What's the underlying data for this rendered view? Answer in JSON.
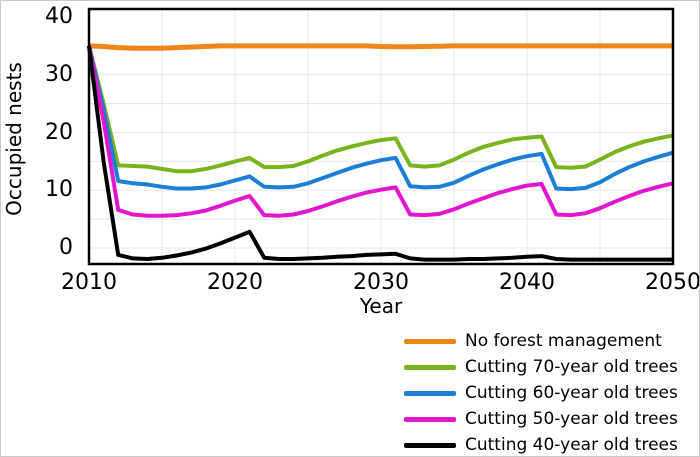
{
  "figure_title": "",
  "axes": {
    "y_title": "Occupied nests",
    "x_title": "Year"
  },
  "chart_data": {
    "type": "line",
    "title": "",
    "xlabel": "Year",
    "ylabel": "Occupied nests",
    "xlim": [
      2010,
      2050
    ],
    "ylim": [
      -2.8,
      41.4
    ],
    "x_ticks": [
      2010,
      2020,
      2030,
      2040,
      2050
    ],
    "y_ticks": [
      0,
      10,
      20,
      30,
      40
    ],
    "grid": true,
    "grid_x_step_years": 5,
    "grid_y_step_units": 5,
    "legend_position": "below-right",
    "x": [
      2010,
      2011,
      2012,
      2013,
      2014,
      2015,
      2016,
      2017,
      2018,
      2019,
      2020,
      2021,
      2022,
      2023,
      2024,
      2025,
      2026,
      2027,
      2028,
      2029,
      2030,
      2031,
      2032,
      2033,
      2034,
      2035,
      2036,
      2037,
      2038,
      2039,
      2040,
      2041,
      2042,
      2043,
      2044,
      2045,
      2046,
      2047,
      2048,
      2049,
      2050
    ],
    "series": [
      {
        "name": "No forest management",
        "color": "#F0861A",
        "line_width": 5,
        "values": [
          35,
          34.9,
          34.7,
          34.6,
          34.6,
          34.6,
          34.7,
          34.8,
          34.9,
          35,
          35,
          35,
          35,
          35,
          35,
          35,
          35,
          35,
          35,
          35,
          34.9,
          34.85,
          34.85,
          34.9,
          34.95,
          35,
          35,
          35,
          35,
          35,
          35,
          35,
          35,
          35,
          35,
          35,
          35,
          35,
          35,
          35,
          35
        ]
      },
      {
        "name": "Cutting 70-year old trees",
        "color": "#7AB41C",
        "line_width": 4,
        "values": [
          35,
          25,
          14.3,
          14.2,
          14.1,
          13.7,
          13.3,
          13.3,
          13.7,
          14.3,
          15,
          15.6,
          14,
          14,
          14.2,
          15,
          16,
          16.9,
          17.6,
          18.2,
          18.7,
          19,
          14.3,
          14.1,
          14.3,
          15.3,
          16.5,
          17.5,
          18.2,
          18.8,
          19.1,
          19.3,
          14,
          13.9,
          14.1,
          15.3,
          16.6,
          17.6,
          18.4,
          19,
          19.5
        ]
      },
      {
        "name": "Cutting 60-year old trees",
        "color": "#1A7FD5",
        "line_width": 4,
        "values": [
          35,
          24,
          11.6,
          11.2,
          11,
          10.6,
          10.3,
          10.3,
          10.5,
          11,
          11.7,
          12.4,
          10.6,
          10.5,
          10.6,
          11.2,
          12.1,
          13,
          13.9,
          14.6,
          15.2,
          15.6,
          10.7,
          10.5,
          10.6,
          11.3,
          12.5,
          13.6,
          14.5,
          15.3,
          15.9,
          16.3,
          10.3,
          10.2,
          10.4,
          11.4,
          12.8,
          14,
          15,
          15.8,
          16.5
        ]
      },
      {
        "name": "Cutting 50-year old trees",
        "color": "#E315CE",
        "line_width": 4,
        "values": [
          35,
          22,
          6.6,
          5.8,
          5.6,
          5.6,
          5.7,
          6,
          6.5,
          7.3,
          8.2,
          9,
          5.7,
          5.6,
          5.8,
          6.4,
          7.2,
          8.1,
          8.9,
          9.6,
          10.1,
          10.5,
          5.8,
          5.7,
          5.9,
          6.7,
          7.7,
          8.6,
          9.5,
          10.2,
          10.8,
          11.1,
          5.8,
          5.7,
          6,
          6.9,
          8,
          9,
          9.9,
          10.6,
          11.2
        ]
      },
      {
        "name": "Cutting 40-year old trees",
        "color": "#000000",
        "line_width": 4,
        "values": [
          35,
          15,
          -1.2,
          -1.8,
          -1.9,
          -1.7,
          -1.3,
          -0.8,
          -0.1,
          0.8,
          1.8,
          2.8,
          -1.7,
          -1.9,
          -1.9,
          -1.8,
          -1.7,
          -1.5,
          -1.4,
          -1.2,
          -1.1,
          -1,
          -1.8,
          -2,
          -2,
          -2,
          -1.9,
          -1.9,
          -1.8,
          -1.7,
          -1.5,
          -1.4,
          -1.9,
          -2,
          -2,
          -2,
          -2,
          -2,
          -2,
          -2,
          -2
        ]
      }
    ]
  },
  "colors": {
    "grid": "#e7e7e7",
    "frame": "#000000",
    "background": "#ffffff"
  }
}
